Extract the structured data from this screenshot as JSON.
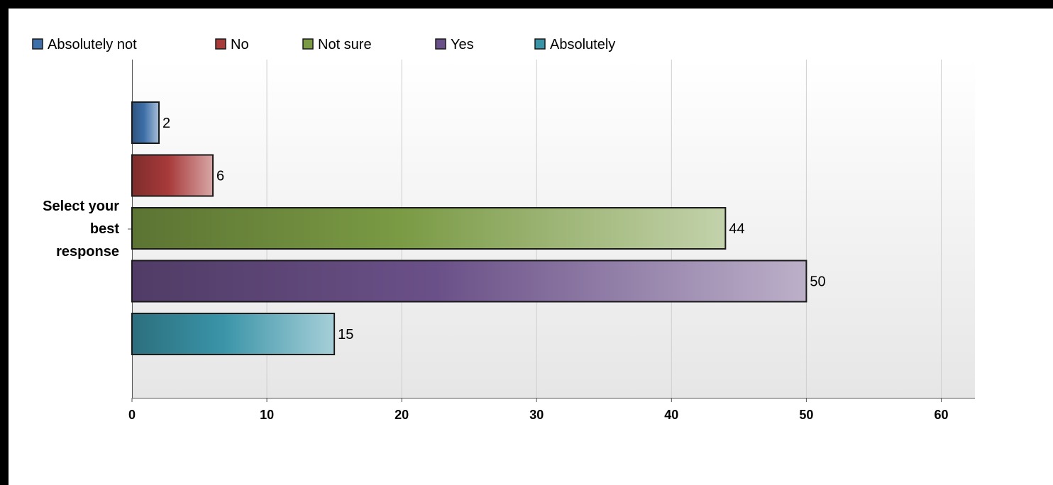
{
  "chart_data": {
    "type": "bar",
    "orientation": "horizontal",
    "categories": [
      "Select your best response"
    ],
    "category_label_lines": [
      "Select your",
      "best",
      "response"
    ],
    "series": [
      {
        "name": "Absolutely not",
        "values": [
          2
        ],
        "color": "#3d6fa8"
      },
      {
        "name": "No",
        "values": [
          6
        ],
        "color": "#a83a3a"
      },
      {
        "name": "Not sure",
        "values": [
          44
        ],
        "color": "#7a9a44"
      },
      {
        "name": "Yes",
        "values": [
          50
        ],
        "color": "#6a5088"
      },
      {
        "name": "Absolutely",
        "values": [
          15
        ],
        "color": "#3a94a8"
      }
    ],
    "x_ticks": [
      "0",
      "10",
      "20",
      "30",
      "40",
      "50",
      "60"
    ],
    "xlim": [
      0,
      62.5
    ],
    "grid": true,
    "legend_position": "top-left",
    "data_labels": true,
    "title": "",
    "xlabel": "",
    "ylabel": ""
  }
}
